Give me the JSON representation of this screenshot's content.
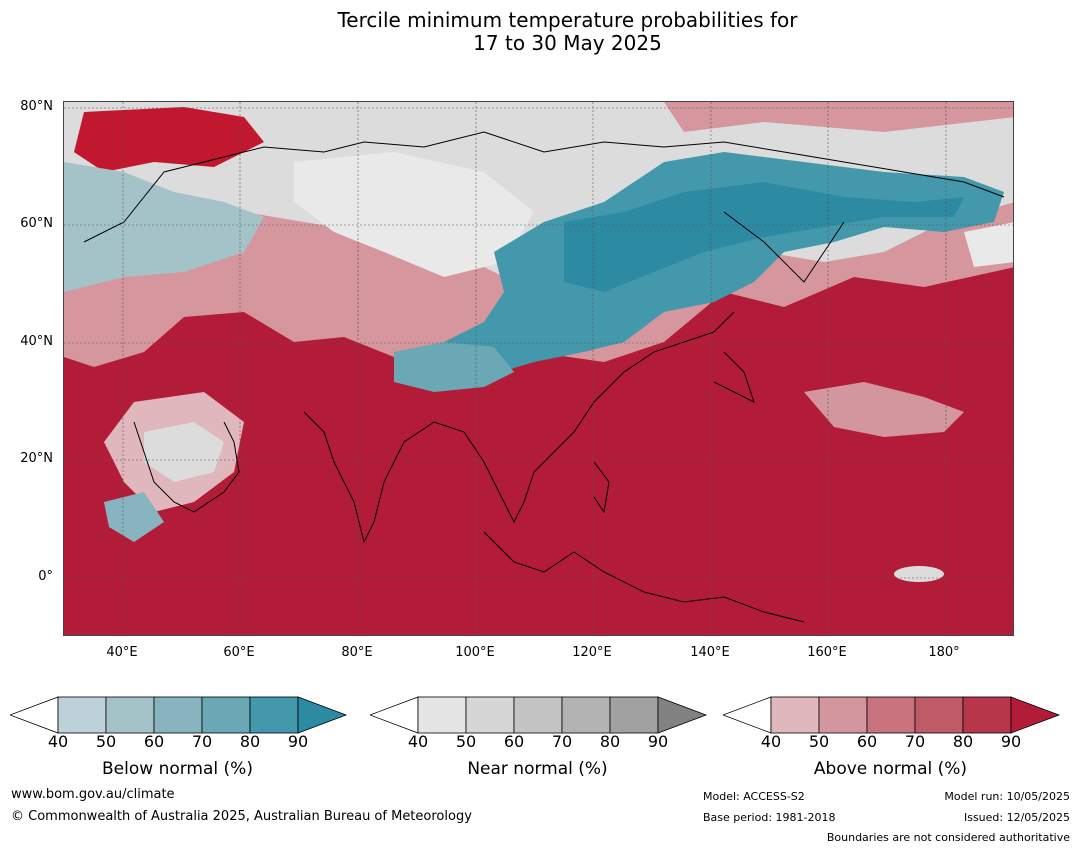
{
  "title_line1": "Tercile minimum temperature probabilities for",
  "title_line2": "17 to 30 May 2025",
  "lat_labels": [
    "80°N",
    "60°N",
    "40°N",
    "20°N",
    "0°"
  ],
  "lon_labels": [
    "40°E",
    "60°E",
    "80°E",
    "100°E",
    "120°E",
    "140°E",
    "160°E",
    "180°"
  ],
  "colorbars": [
    {
      "label": "Below normal (%)",
      "ticks": [
        "40",
        "50",
        "60",
        "70",
        "80",
        "90"
      ],
      "colors": [
        "#ffffff",
        "#bdd1d8",
        "#a4c3c9",
        "#88b4bf",
        "#69a8b4",
        "#4498ab",
        "#2c8ba3"
      ]
    },
    {
      "label": "Near normal (%)",
      "ticks": [
        "40",
        "50",
        "60",
        "70",
        "80",
        "90"
      ],
      "colors": [
        "#ffffff",
        "#e5e5e5",
        "#d6d6d6",
        "#c4c4c4",
        "#b3b3b3",
        "#a1a1a1",
        "#828282"
      ]
    },
    {
      "label": "Above normal (%)",
      "ticks": [
        "40",
        "50",
        "60",
        "70",
        "80",
        "90"
      ],
      "colors": [
        "#ffffff",
        "#e0b7bd",
        "#d4969e",
        "#c9737f",
        "#bf5a67",
        "#b8364a",
        "#b31c38"
      ]
    }
  ],
  "footer": {
    "url": "www.bom.gov.au/climate",
    "copyright": "© Commonwealth of Australia 2025, Australian Bureau of Meteorology",
    "model": "Model: ACCESS-S2",
    "base_period": "Base period: 1981-2018",
    "model_run": "Model run: 10/05/2025",
    "issued": "Issued: 12/05/2025",
    "disclaimer": "Boundaries are not considered authoritative"
  }
}
